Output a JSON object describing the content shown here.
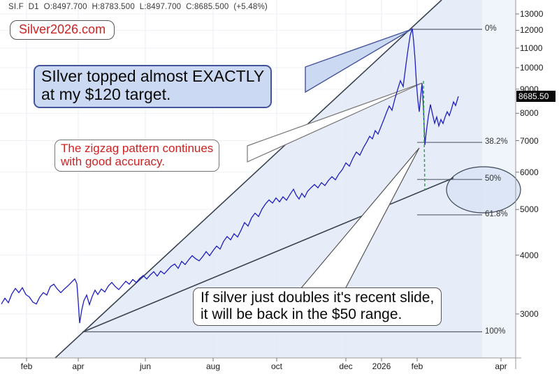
{
  "header": {
    "ohlc_readout": "SI.F  D1  O:8497.700  H:8783.500  L:8497.700  C:8685.500  (+5.48%)"
  },
  "watermark": {
    "label": "Silver2026.com"
  },
  "annotations": {
    "target_note": {
      "line1": "SIlver topped almost EXACTLY",
      "line2": "at my $120 target."
    },
    "zigzag_note": {
      "line1": "The zigzag pattern continues",
      "line2": "with good accuracy."
    },
    "double_note": {
      "line1": "If silver just doubles it's recent slide,",
      "line2": "it will be back in the $50 range."
    }
  },
  "colors": {
    "price_line": "#1f1fc0",
    "annotation_red": "#cc2222",
    "note_blue_fill": "#ccd9f2",
    "note_blue_border": "#44549a",
    "wedge_fill": "#e2e9f7",
    "band_fill": "#f0f4fb",
    "badge_bg": "#0a0a0a",
    "drop_marker_green": "#3aa052"
  },
  "chart_data": {
    "type": "line",
    "symbol": "SI.F",
    "timeframe": "D1",
    "last_bar": {
      "open": 8497.7,
      "high": 8783.5,
      "low": 8497.7,
      "close": 8685.5,
      "change_pct": "+5.48%"
    },
    "last_price_label": "8685.50",
    "y_axis": {
      "scale": "log",
      "ticks": [
        13000,
        12000,
        11000,
        10000,
        9000,
        8000,
        7000,
        6000,
        5000,
        4000,
        3000
      ]
    },
    "x_axis": {
      "tick_labels": [
        "feb",
        "apr",
        "jun",
        "aug",
        "oct",
        "dec",
        "2026",
        "feb",
        "apr"
      ]
    },
    "fib_retracement": [
      {
        "label": "0%",
        "approx_price": 12060
      },
      {
        "label": "38.2%",
        "approx_price": 6940
      },
      {
        "label": "50%",
        "approx_price": 5790
      },
      {
        "label": "61.8%",
        "approx_price": 4870
      },
      {
        "label": "100%",
        "approx_price": 2750
      }
    ],
    "price_path": [
      [
        2,
        3150
      ],
      [
        7,
        3240
      ],
      [
        12,
        3170
      ],
      [
        17,
        3310
      ],
      [
        22,
        3400
      ],
      [
        27,
        3330
      ],
      [
        32,
        3410
      ],
      [
        37,
        3300
      ],
      [
        42,
        3260
      ],
      [
        47,
        3180
      ],
      [
        52,
        3150
      ],
      [
        57,
        3260
      ],
      [
        62,
        3330
      ],
      [
        67,
        3290
      ],
      [
        72,
        3430
      ],
      [
        77,
        3470
      ],
      [
        82,
        3390
      ],
      [
        87,
        3330
      ],
      [
        92,
        3390
      ],
      [
        97,
        3440
      ],
      [
        102,
        3500
      ],
      [
        107,
        3560
      ],
      [
        110,
        3480
      ],
      [
        112,
        3180
      ],
      [
        114,
        2870
      ],
      [
        117,
        3060
      ],
      [
        120,
        3200
      ],
      [
        124,
        3290
      ],
      [
        128,
        3140
      ],
      [
        132,
        3270
      ],
      [
        136,
        3370
      ],
      [
        140,
        3300
      ],
      [
        145,
        3390
      ],
      [
        150,
        3340
      ],
      [
        155,
        3440
      ],
      [
        160,
        3500
      ],
      [
        165,
        3430
      ],
      [
        170,
        3380
      ],
      [
        175,
        3450
      ],
      [
        180,
        3520
      ],
      [
        185,
        3470
      ],
      [
        190,
        3550
      ],
      [
        195,
        3500
      ],
      [
        200,
        3570
      ],
      [
        205,
        3620
      ],
      [
        210,
        3560
      ],
      [
        215,
        3630
      ],
      [
        220,
        3690
      ],
      [
        225,
        3610
      ],
      [
        230,
        3700
      ],
      [
        235,
        3650
      ],
      [
        240,
        3720
      ],
      [
        245,
        3790
      ],
      [
        250,
        3830
      ],
      [
        255,
        3750
      ],
      [
        260,
        3880
      ],
      [
        265,
        3820
      ],
      [
        270,
        3910
      ],
      [
        275,
        3990
      ],
      [
        280,
        3930
      ],
      [
        285,
        3890
      ],
      [
        290,
        3970
      ],
      [
        295,
        4070
      ],
      [
        300,
        3990
      ],
      [
        305,
        4090
      ],
      [
        310,
        4180
      ],
      [
        315,
        4120
      ],
      [
        320,
        4280
      ],
      [
        325,
        4380
      ],
      [
        330,
        4310
      ],
      [
        335,
        4440
      ],
      [
        340,
        4370
      ],
      [
        345,
        4520
      ],
      [
        350,
        4690
      ],
      [
        355,
        4610
      ],
      [
        360,
        4800
      ],
      [
        365,
        4910
      ],
      [
        370,
        4830
      ],
      [
        375,
        5010
      ],
      [
        380,
        5140
      ],
      [
        385,
        5240
      ],
      [
        390,
        5160
      ],
      [
        395,
        5290
      ],
      [
        400,
        5190
      ],
      [
        405,
        5320
      ],
      [
        410,
        5230
      ],
      [
        415,
        5380
      ],
      [
        420,
        5520
      ],
      [
        424,
        5360
      ],
      [
        428,
        5260
      ],
      [
        432,
        5410
      ],
      [
        436,
        5310
      ],
      [
        440,
        5460
      ],
      [
        445,
        5560
      ],
      [
        450,
        5650
      ],
      [
        455,
        5560
      ],
      [
        460,
        5700
      ],
      [
        465,
        5620
      ],
      [
        470,
        5760
      ],
      [
        475,
        5870
      ],
      [
        480,
        5780
      ],
      [
        485,
        5950
      ],
      [
        490,
        6080
      ],
      [
        495,
        6280
      ],
      [
        500,
        6180
      ],
      [
        505,
        6420
      ],
      [
        510,
        6620
      ],
      [
        515,
        6520
      ],
      [
        520,
        6760
      ],
      [
        525,
        6960
      ],
      [
        529,
        7150
      ],
      [
        533,
        7060
      ],
      [
        537,
        7350
      ],
      [
        541,
        7230
      ],
      [
        545,
        7480
      ],
      [
        549,
        7740
      ],
      [
        553,
        8020
      ],
      [
        557,
        8290
      ],
      [
        561,
        8120
      ],
      [
        565,
        8570
      ],
      [
        569,
        8980
      ],
      [
        573,
        9380
      ],
      [
        577,
        9120
      ],
      [
        581,
        10150
      ],
      [
        584,
        10950
      ],
      [
        587,
        11700
      ],
      [
        590,
        12100
      ],
      [
        592,
        11350
      ],
      [
        594,
        10400
      ],
      [
        596,
        9250
      ],
      [
        598,
        8530
      ],
      [
        600,
        8060
      ],
      [
        602,
        8690
      ],
      [
        604,
        9260
      ],
      [
        606,
        8210
      ],
      [
        608,
        6850
      ],
      [
        610,
        7290
      ],
      [
        613,
        7880
      ],
      [
        616,
        8350
      ],
      [
        619,
        7960
      ],
      [
        622,
        7620
      ],
      [
        625,
        7860
      ],
      [
        628,
        7520
      ],
      [
        631,
        7760
      ],
      [
        634,
        7610
      ],
      [
        637,
        7860
      ],
      [
        640,
        8060
      ],
      [
        643,
        7910
      ],
      [
        646,
        8160
      ],
      [
        649,
        8460
      ],
      [
        652,
        8310
      ],
      [
        656,
        8690
      ]
    ]
  }
}
